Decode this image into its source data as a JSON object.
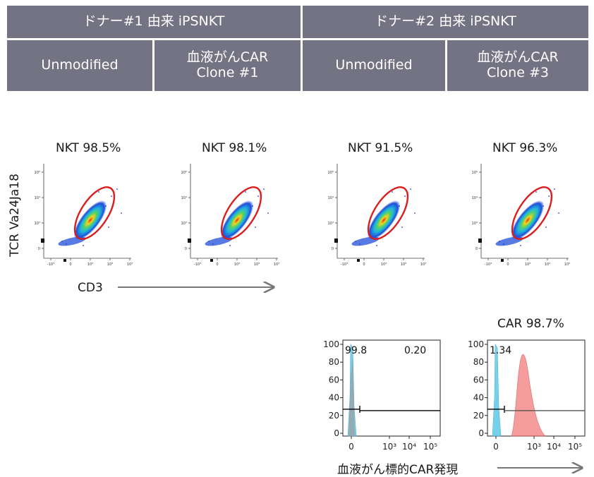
{
  "header": {
    "donor_groups": [
      {
        "label": "ドナー#1 由来 iPSNKT"
      },
      {
        "label": "ドナー#2 由来 iPSNKT"
      }
    ],
    "columns": [
      {
        "label": "Unmodified"
      },
      {
        "label": "血液がんCAR\nClone #1"
      },
      {
        "label": "Unmodified"
      },
      {
        "label": "血液がんCAR\nClone #3"
      }
    ]
  },
  "axes": {
    "flow_y_label": "TCR Va24Ja18",
    "flow_x_label": "CD3",
    "hist_x_label": "血液がん標的CAR発現"
  },
  "chart_data": [
    {
      "type": "scatter",
      "title": "NKT 98.5%",
      "gate_label": "NKT",
      "gate_percent": 98.5,
      "xlabel": "CD3",
      "ylabel": "TCR Va24Ja18",
      "x_ticks": [
        "-10³",
        "0",
        "10³",
        "10⁴",
        "10⁵"
      ],
      "y_ticks": [
        "10⁵",
        "10⁴",
        "10³",
        "0"
      ]
    },
    {
      "type": "scatter",
      "title": "NKT 98.1%",
      "gate_label": "NKT",
      "gate_percent": 98.1,
      "xlabel": "CD3",
      "ylabel": "TCR Va24Ja18",
      "x_ticks": [
        "-10³",
        "0",
        "10³",
        "10⁴",
        "10⁵"
      ],
      "y_ticks": [
        "10⁵",
        "10⁴",
        "10³",
        "0"
      ]
    },
    {
      "type": "scatter",
      "title": "NKT 91.5%",
      "gate_label": "NKT",
      "gate_percent": 91.5,
      "xlabel": "CD3",
      "ylabel": "TCR Va24Ja18",
      "x_ticks": [
        "-10³",
        "0",
        "10³",
        "10⁴",
        "10⁵"
      ],
      "y_ticks": [
        "10⁵",
        "10⁴",
        "10³",
        "0"
      ]
    },
    {
      "type": "scatter",
      "title": "NKT 96.3%",
      "gate_label": "NKT",
      "gate_percent": 96.3,
      "xlabel": "CD3",
      "ylabel": "TCR Va24Ja18",
      "x_ticks": [
        "-10³",
        "0",
        "10³",
        "10⁴",
        "10⁵"
      ],
      "y_ticks": [
        "10⁵",
        "10⁴",
        "10³",
        "0"
      ]
    },
    {
      "type": "area",
      "title": "",
      "xlabel": "血液がん標的CAR発現",
      "y_ticks": [
        "100",
        "80",
        "60",
        "40",
        "20",
        "0"
      ],
      "ylim": [
        0,
        100
      ],
      "x_ticks": [
        "0",
        "10³",
        "10⁴",
        "10⁵"
      ],
      "gate_values": {
        "left": "99.8",
        "right": "0.20"
      },
      "series": [
        {
          "color": "#5ec9e8",
          "peak_x": "0",
          "peak_y": 100
        }
      ]
    },
    {
      "type": "area",
      "title": "CAR 98.7%",
      "gate_label": "CAR",
      "gate_percent": 98.7,
      "xlabel": "血液がん標的CAR発現",
      "y_ticks": [
        "100",
        "80",
        "60",
        "40",
        "20",
        "0"
      ],
      "ylim": [
        0,
        100
      ],
      "x_ticks": [
        "0",
        "10³",
        "10⁴",
        "10⁵"
      ],
      "gate_values": {
        "left": "1.34"
      },
      "series": [
        {
          "color": "#5ec9e8",
          "peak_x": "0",
          "peak_y": 100
        },
        {
          "color": "#f27c7c",
          "peak_y": 90
        }
      ]
    }
  ],
  "colors": {
    "header_bg": "#747384",
    "gate": "#d81e1e",
    "unstained": "#5ec9e8",
    "car": "#f27c7c",
    "arrow": "#777777"
  }
}
